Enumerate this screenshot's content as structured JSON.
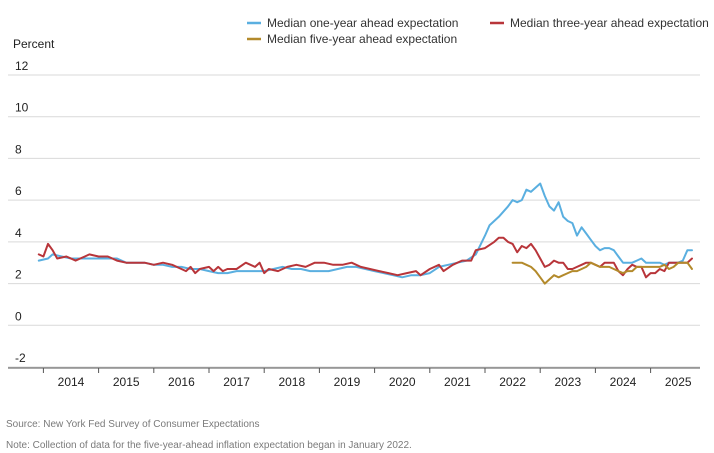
{
  "chart_data": {
    "type": "line",
    "ylabel": "Percent",
    "ylim": [
      -2,
      12
    ],
    "y_ticks": [
      -2,
      0,
      2,
      4,
      6,
      8,
      10,
      12
    ],
    "x_range": [
      "2013-06",
      "2025-07"
    ],
    "x_ticks": [
      "2014",
      "2015",
      "2016",
      "2017",
      "2018",
      "2019",
      "2020",
      "2021",
      "2022",
      "2023",
      "2024",
      "2025"
    ],
    "grid": "horizontal",
    "legend_position": "top",
    "series": [
      {
        "name": "Median one-year ahead expectation",
        "color": "#5aafe0",
        "points": [
          [
            "2013-06",
            3.1
          ],
          [
            "2013-08",
            3.2
          ],
          [
            "2013-09",
            3.4
          ],
          [
            "2013-11",
            3.3
          ],
          [
            "2014-01",
            3.2
          ],
          [
            "2014-03",
            3.2
          ],
          [
            "2014-05",
            3.2
          ],
          [
            "2014-07",
            3.2
          ],
          [
            "2014-09",
            3.2
          ],
          [
            "2014-11",
            3.2
          ],
          [
            "2015-01",
            3.0
          ],
          [
            "2015-03",
            3.0
          ],
          [
            "2015-05",
            3.0
          ],
          [
            "2015-07",
            2.9
          ],
          [
            "2015-09",
            2.9
          ],
          [
            "2015-11",
            2.8
          ],
          [
            "2016-01",
            2.8
          ],
          [
            "2016-03",
            2.7
          ],
          [
            "2016-05",
            2.7
          ],
          [
            "2016-07",
            2.6
          ],
          [
            "2016-09",
            2.5
          ],
          [
            "2016-11",
            2.5
          ],
          [
            "2017-01",
            2.6
          ],
          [
            "2017-03",
            2.6
          ],
          [
            "2017-05",
            2.6
          ],
          [
            "2017-07",
            2.6
          ],
          [
            "2017-09",
            2.7
          ],
          [
            "2017-11",
            2.8
          ],
          [
            "2018-01",
            2.7
          ],
          [
            "2018-03",
            2.7
          ],
          [
            "2018-05",
            2.6
          ],
          [
            "2018-07",
            2.6
          ],
          [
            "2018-09",
            2.6
          ],
          [
            "2018-11",
            2.7
          ],
          [
            "2019-01",
            2.8
          ],
          [
            "2019-03",
            2.8
          ],
          [
            "2019-05",
            2.7
          ],
          [
            "2019-07",
            2.6
          ],
          [
            "2019-09",
            2.5
          ],
          [
            "2019-11",
            2.4
          ],
          [
            "2020-01",
            2.3
          ],
          [
            "2020-03",
            2.4
          ],
          [
            "2020-05",
            2.4
          ],
          [
            "2020-07",
            2.5
          ],
          [
            "2020-09",
            2.8
          ],
          [
            "2020-11",
            2.9
          ],
          [
            "2021-01",
            3.0
          ],
          [
            "2021-03",
            3.1
          ],
          [
            "2021-05",
            3.4
          ],
          [
            "2021-07",
            4.3
          ],
          [
            "2021-08",
            4.8
          ],
          [
            "2021-10",
            5.2
          ],
          [
            "2021-12",
            5.7
          ],
          [
            "2022-01",
            6.0
          ],
          [
            "2022-02",
            5.9
          ],
          [
            "2022-03",
            6.0
          ],
          [
            "2022-04",
            6.5
          ],
          [
            "2022-05",
            6.4
          ],
          [
            "2022-06",
            6.6
          ],
          [
            "2022-07",
            6.8
          ],
          [
            "2022-08",
            6.2
          ],
          [
            "2022-09",
            5.7
          ],
          [
            "2022-10",
            5.5
          ],
          [
            "2022-11",
            5.9
          ],
          [
            "2022-12",
            5.2
          ],
          [
            "2023-01",
            5.0
          ],
          [
            "2023-02",
            4.9
          ],
          [
            "2023-03",
            4.3
          ],
          [
            "2023-04",
            4.7
          ],
          [
            "2023-05",
            4.4
          ],
          [
            "2023-06",
            4.1
          ],
          [
            "2023-07",
            3.8
          ],
          [
            "2023-08",
            3.6
          ],
          [
            "2023-09",
            3.7
          ],
          [
            "2023-10",
            3.7
          ],
          [
            "2023-11",
            3.6
          ],
          [
            "2023-12",
            3.3
          ],
          [
            "2024-01",
            3.0
          ],
          [
            "2024-02",
            3.0
          ],
          [
            "2024-03",
            3.0
          ],
          [
            "2024-04",
            3.1
          ],
          [
            "2024-05",
            3.2
          ],
          [
            "2024-06",
            3.0
          ],
          [
            "2024-07",
            3.0
          ],
          [
            "2024-08",
            3.0
          ],
          [
            "2024-09",
            3.0
          ],
          [
            "2024-10",
            2.9
          ],
          [
            "2024-11",
            3.0
          ],
          [
            "2024-12",
            3.0
          ],
          [
            "2025-01",
            3.0
          ],
          [
            "2025-02",
            3.1
          ],
          [
            "2025-03",
            3.6
          ],
          [
            "2025-04",
            3.6
          ]
        ]
      },
      {
        "name": "Median three-year ahead expectation",
        "color": "#b8353a",
        "points": [
          [
            "2013-06",
            3.4
          ],
          [
            "2013-07",
            3.3
          ],
          [
            "2013-08",
            3.9
          ],
          [
            "2013-09",
            3.6
          ],
          [
            "2013-10",
            3.2
          ],
          [
            "2013-12",
            3.3
          ],
          [
            "2014-02",
            3.1
          ],
          [
            "2014-04",
            3.3
          ],
          [
            "2014-05",
            3.4
          ],
          [
            "2014-07",
            3.3
          ],
          [
            "2014-09",
            3.3
          ],
          [
            "2014-11",
            3.1
          ],
          [
            "2015-01",
            3.0
          ],
          [
            "2015-03",
            3.0
          ],
          [
            "2015-05",
            3.0
          ],
          [
            "2015-07",
            2.9
          ],
          [
            "2015-09",
            3.0
          ],
          [
            "2015-11",
            2.9
          ],
          [
            "2016-01",
            2.7
          ],
          [
            "2016-02",
            2.6
          ],
          [
            "2016-03",
            2.8
          ],
          [
            "2016-04",
            2.5
          ],
          [
            "2016-05",
            2.7
          ],
          [
            "2016-07",
            2.8
          ],
          [
            "2016-08",
            2.6
          ],
          [
            "2016-09",
            2.8
          ],
          [
            "2016-10",
            2.6
          ],
          [
            "2016-11",
            2.7
          ],
          [
            "2017-01",
            2.7
          ],
          [
            "2017-03",
            3.0
          ],
          [
            "2017-05",
            2.8
          ],
          [
            "2017-06",
            3.0
          ],
          [
            "2017-07",
            2.5
          ],
          [
            "2017-08",
            2.7
          ],
          [
            "2017-10",
            2.6
          ],
          [
            "2017-12",
            2.8
          ],
          [
            "2018-02",
            2.9
          ],
          [
            "2018-04",
            2.8
          ],
          [
            "2018-06",
            3.0
          ],
          [
            "2018-08",
            3.0
          ],
          [
            "2018-10",
            2.9
          ],
          [
            "2018-12",
            2.9
          ],
          [
            "2019-02",
            3.0
          ],
          [
            "2019-04",
            2.8
          ],
          [
            "2019-06",
            2.7
          ],
          [
            "2019-08",
            2.6
          ],
          [
            "2019-10",
            2.5
          ],
          [
            "2019-12",
            2.4
          ],
          [
            "2020-02",
            2.5
          ],
          [
            "2020-04",
            2.6
          ],
          [
            "2020-05",
            2.4
          ],
          [
            "2020-07",
            2.7
          ],
          [
            "2020-09",
            2.9
          ],
          [
            "2020-10",
            2.6
          ],
          [
            "2020-12",
            2.9
          ],
          [
            "2021-02",
            3.1
          ],
          [
            "2021-04",
            3.1
          ],
          [
            "2021-05",
            3.6
          ],
          [
            "2021-07",
            3.7
          ],
          [
            "2021-09",
            4.0
          ],
          [
            "2021-10",
            4.2
          ],
          [
            "2021-11",
            4.2
          ],
          [
            "2021-12",
            4.0
          ],
          [
            "2022-01",
            3.9
          ],
          [
            "2022-02",
            3.5
          ],
          [
            "2022-03",
            3.8
          ],
          [
            "2022-04",
            3.7
          ],
          [
            "2022-05",
            3.9
          ],
          [
            "2022-06",
            3.6
          ],
          [
            "2022-07",
            3.2
          ],
          [
            "2022-08",
            2.8
          ],
          [
            "2022-09",
            2.9
          ],
          [
            "2022-10",
            3.1
          ],
          [
            "2022-11",
            3.0
          ],
          [
            "2022-12",
            3.0
          ],
          [
            "2023-01",
            2.7
          ],
          [
            "2023-02",
            2.7
          ],
          [
            "2023-03",
            2.8
          ],
          [
            "2023-04",
            2.9
          ],
          [
            "2023-05",
            3.0
          ],
          [
            "2023-06",
            3.0
          ],
          [
            "2023-07",
            2.9
          ],
          [
            "2023-08",
            2.8
          ],
          [
            "2023-09",
            3.0
          ],
          [
            "2023-10",
            3.0
          ],
          [
            "2023-11",
            3.0
          ],
          [
            "2023-12",
            2.6
          ],
          [
            "2024-01",
            2.4
          ],
          [
            "2024-02",
            2.7
          ],
          [
            "2024-03",
            2.9
          ],
          [
            "2024-04",
            2.8
          ],
          [
            "2024-05",
            2.8
          ],
          [
            "2024-06",
            2.3
          ],
          [
            "2024-07",
            2.5
          ],
          [
            "2024-08",
            2.5
          ],
          [
            "2024-09",
            2.7
          ],
          [
            "2024-10",
            2.6
          ],
          [
            "2024-11",
            3.0
          ],
          [
            "2024-12",
            3.0
          ],
          [
            "2025-01",
            3.0
          ],
          [
            "2025-02",
            3.0
          ],
          [
            "2025-03",
            3.0
          ],
          [
            "2025-04",
            3.2
          ]
        ]
      },
      {
        "name": "Median five-year ahead expectation",
        "color": "#b38a2b",
        "points": [
          [
            "2022-01",
            3.0
          ],
          [
            "2022-02",
            3.0
          ],
          [
            "2022-03",
            3.0
          ],
          [
            "2022-04",
            2.9
          ],
          [
            "2022-05",
            2.8
          ],
          [
            "2022-06",
            2.6
          ],
          [
            "2022-07",
            2.3
          ],
          [
            "2022-08",
            2.0
          ],
          [
            "2022-09",
            2.2
          ],
          [
            "2022-10",
            2.4
          ],
          [
            "2022-11",
            2.3
          ],
          [
            "2022-12",
            2.4
          ],
          [
            "2023-01",
            2.5
          ],
          [
            "2023-02",
            2.6
          ],
          [
            "2023-03",
            2.6
          ],
          [
            "2023-04",
            2.7
          ],
          [
            "2023-05",
            2.8
          ],
          [
            "2023-06",
            3.0
          ],
          [
            "2023-07",
            2.9
          ],
          [
            "2023-08",
            2.8
          ],
          [
            "2023-09",
            2.8
          ],
          [
            "2023-10",
            2.8
          ],
          [
            "2023-11",
            2.7
          ],
          [
            "2023-12",
            2.6
          ],
          [
            "2024-01",
            2.5
          ],
          [
            "2024-02",
            2.6
          ],
          [
            "2024-03",
            2.6
          ],
          [
            "2024-04",
            2.8
          ],
          [
            "2024-05",
            2.8
          ],
          [
            "2024-06",
            2.8
          ],
          [
            "2024-07",
            2.8
          ],
          [
            "2024-08",
            2.8
          ],
          [
            "2024-09",
            2.8
          ],
          [
            "2024-10",
            2.9
          ],
          [
            "2024-11",
            2.7
          ],
          [
            "2024-12",
            2.8
          ],
          [
            "2025-01",
            3.0
          ],
          [
            "2025-02",
            3.0
          ],
          [
            "2025-03",
            3.0
          ],
          [
            "2025-04",
            2.7
          ]
        ]
      }
    ]
  },
  "footnotes": {
    "source": "Source: New York Fed Survey of Consumer Expectations",
    "note": "Note: Collection of data for the five-year-ahead inflation expectation began in January 2022."
  }
}
